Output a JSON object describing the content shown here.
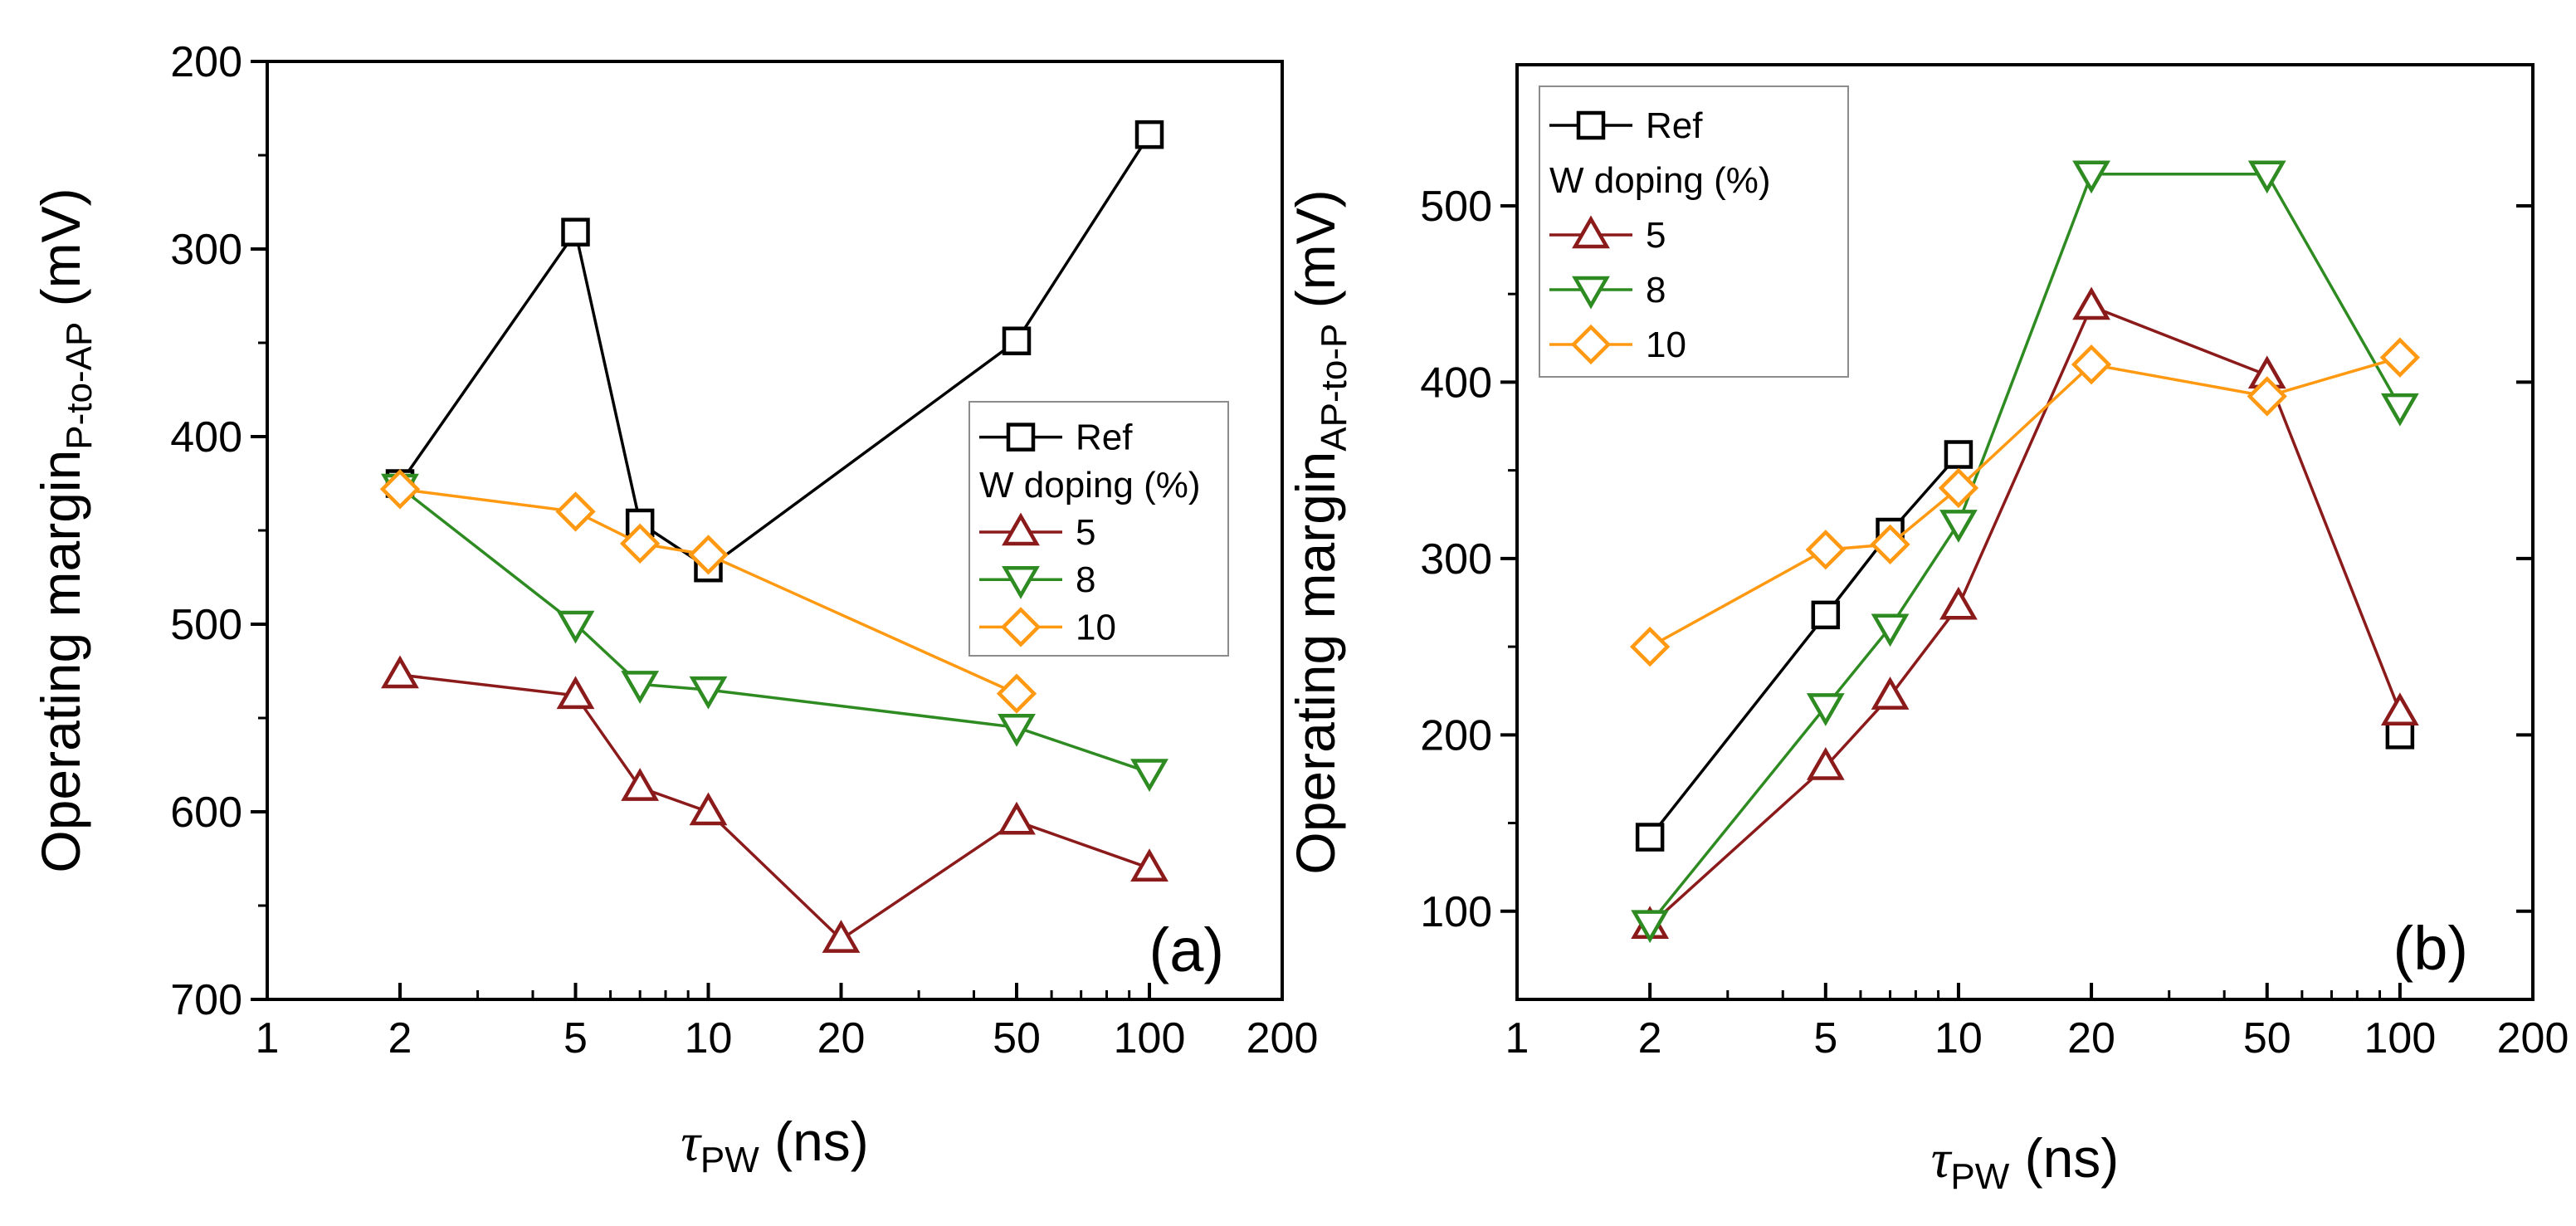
{
  "colors": {
    "ref": "#000000",
    "w5": "#8B1A1A",
    "w8": "#2E8B22",
    "w10": "#FF9912",
    "axis": "#000000",
    "legend_border": "#8c8c8c"
  },
  "chart_data": [
    {
      "type": "line",
      "panel_label": "(a)",
      "xlabel_main": "τ",
      "xlabel_sub": "PW",
      "xlabel_unit": " (ns)",
      "ylabel_main": "Operating margin",
      "ylabel_sub": "P-to-AP",
      "ylabel_unit": " (mV)",
      "xscale": "log",
      "xlim": [
        1,
        200
      ],
      "ylim": [
        200,
        700
      ],
      "y_inverted": true,
      "xticks": [
        1,
        2,
        5,
        10,
        20,
        50,
        100,
        200
      ],
      "xtick_labels": [
        "1",
        "2",
        "5",
        "10",
        "20",
        "50",
        "100",
        "200"
      ],
      "yticks": [
        200,
        300,
        400,
        500,
        600,
        700
      ],
      "ytick_labels": [
        "200",
        "300",
        "400",
        "500",
        "600",
        "700"
      ],
      "legend_position": "center-right",
      "legend": {
        "ref_label": "Ref",
        "group_title": "W doping (%)",
        "labels": [
          "5",
          "8",
          "10"
        ]
      },
      "series": [
        {
          "name": "Ref",
          "color_key": "ref",
          "marker": "square",
          "x": [
            2,
            5,
            7,
            10,
            50,
            100
          ],
          "y": [
            425,
            291,
            446,
            470,
            349,
            239
          ]
        },
        {
          "name": "5",
          "color_key": "w5",
          "marker": "triangle-up",
          "x": [
            2,
            5,
            7,
            10,
            20,
            50,
            100
          ],
          "y": [
            527,
            538,
            587,
            600,
            668,
            605,
            630
          ]
        },
        {
          "name": "8",
          "color_key": "w8",
          "marker": "triangle-down",
          "x": [
            2,
            5,
            7,
            10,
            50,
            100
          ],
          "y": [
            427,
            500,
            532,
            535,
            555,
            579
          ]
        },
        {
          "name": "10",
          "color_key": "w10",
          "marker": "diamond",
          "x": [
            2,
            5,
            7,
            10,
            50,
            100
          ],
          "y": [
            428,
            440,
            457,
            463,
            537,
            null
          ]
        }
      ]
    },
    {
      "type": "line",
      "panel_label": "(b)",
      "xlabel_main": "τ",
      "xlabel_sub": "PW",
      "xlabel_unit": " (ns)",
      "ylabel_main": "Operating margin",
      "ylabel_sub": "AP-to-P",
      "ylabel_unit": " (mV)",
      "xscale": "log",
      "xlim": [
        1,
        200
      ],
      "ylim": [
        50,
        580
      ],
      "y_inverted": false,
      "xticks": [
        1,
        2,
        5,
        10,
        20,
        50,
        100,
        200
      ],
      "xtick_labels": [
        "1",
        "2",
        "5",
        "10",
        "20",
        "50",
        "100",
        "200"
      ],
      "yticks": [
        100,
        200,
        300,
        400,
        500
      ],
      "ytick_labels": [
        "100",
        "200",
        "300",
        "400",
        "500"
      ],
      "legend_position": "top-left",
      "legend": {
        "ref_label": "Ref",
        "group_title": "W doping (%)",
        "labels": [
          "5",
          "8",
          "10"
        ]
      },
      "series": [
        {
          "name": "Ref",
          "color_key": "ref",
          "marker": "square",
          "x": [
            2,
            5,
            7,
            10,
            100
          ],
          "y": [
            142,
            268,
            315,
            359,
            200
          ],
          "breaks_after": [
            3
          ]
        },
        {
          "name": "5",
          "color_key": "w5",
          "marker": "triangle-up",
          "x": [
            2,
            5,
            7,
            10,
            20,
            50,
            100
          ],
          "y": [
            92,
            182,
            222,
            273,
            443,
            404,
            213
          ]
        },
        {
          "name": "8",
          "color_key": "w8",
          "marker": "triangle-down",
          "x": [
            2,
            5,
            7,
            10,
            20,
            50,
            100
          ],
          "y": [
            93,
            216,
            261,
            320,
            518,
            518,
            386
          ]
        },
        {
          "name": "10",
          "color_key": "w10",
          "marker": "diamond",
          "x": [
            2,
            5,
            7,
            10,
            20,
            50,
            100
          ],
          "y": [
            250,
            305,
            308,
            340,
            410,
            392,
            414
          ]
        }
      ]
    }
  ]
}
